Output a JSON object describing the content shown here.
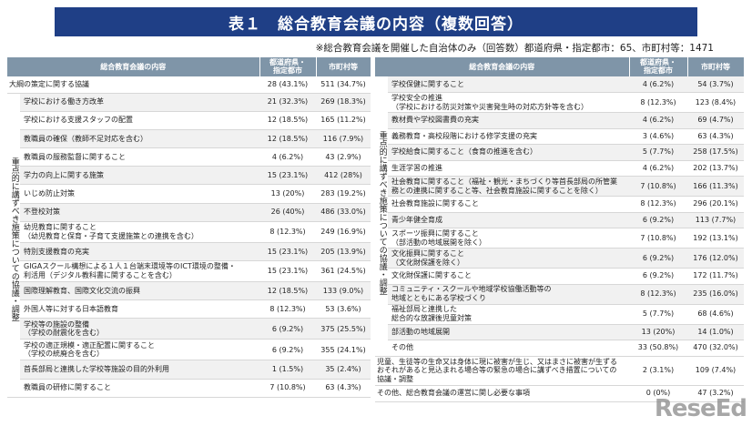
{
  "title": "表１　総合教育会議の内容（複数回答）",
  "note": "※総合教育会議を開催した自治体のみ（回答数）都道府県・指定都市：65、市町村等：1471",
  "headers": {
    "content": "総合教育会議の内容",
    "pref": "都道府県・\n指定都市",
    "muni": "市町村等"
  },
  "left": {
    "first_row": {
      "item": "大綱の策定に関する協議",
      "pref": "28 (43.1%)",
      "muni": "511 (34.7%)"
    },
    "group_label": "重点的に講ずべき施策についての協議・調整",
    "rows": [
      {
        "item": "学校における働き方改革",
        "pref": "21 (32.3%)",
        "muni": "269 (18.3%)"
      },
      {
        "item": "学校における支援スタッフの配置",
        "pref": "12 (18.5%)",
        "muni": "165 (11.2%)"
      },
      {
        "item": "教職員の確保（教師不足対応を含む）",
        "pref": "12 (18.5%)",
        "muni": "116 (7.9%)"
      },
      {
        "item": "教職員の服務監督に関すること",
        "pref": "4 (6.2%)",
        "muni": "43 (2.9%)"
      },
      {
        "item": "学力の向上に関する施策",
        "pref": "15 (23.1%)",
        "muni": "412 (28%)"
      },
      {
        "item": "いじめ防止対策",
        "pref": "13 (20%)",
        "muni": "283 (19.2%)"
      },
      {
        "item": "不登校対策",
        "pref": "26 (40%)",
        "muni": "486 (33.0%)"
      },
      {
        "item": "幼児教育に関すること\n（幼児教育と保育・子育て支援施策との連携を含む）",
        "pref": "8 (12.3%)",
        "muni": "249 (16.9%)"
      },
      {
        "item": "特別支援教育の充実",
        "pref": "15 (23.1%)",
        "muni": "205 (13.9%)"
      },
      {
        "item": "GIGAスクール構想による１人１台端末環境等のICT環境の整備・\n利活用（デジタル教科書に関することを含む）",
        "pref": "15 (23.1%)",
        "muni": "361 (24.5%)"
      },
      {
        "item": "国際理解教育、国際文化交流の振興",
        "pref": "12 (18.5%)",
        "muni": "133 (9.0%)"
      },
      {
        "item": "外国人等に対する日本語教育",
        "pref": "8 (12.3%)",
        "muni": "53 (3.6%)"
      },
      {
        "item": "学校等の施設の整備\n（学校の耐震化を含む）",
        "pref": "6 (9.2%)",
        "muni": "375 (25.5%)"
      },
      {
        "item": "学校の適正規模・適正配置に関すること\n（学校の統廃合を含む）",
        "pref": "6 (9.2%)",
        "muni": "355 (24.1%)"
      },
      {
        "item": "首長部局と連携した学校等施設の目的外利用",
        "pref": "1 (1.5%)",
        "muni": "35 (2.4%)"
      },
      {
        "item": "教職員の研修に関すること",
        "pref": "7 (10.8%)",
        "muni": "63 (4.3%)"
      }
    ]
  },
  "right": {
    "group_label": "重点的に講ずべき施策についての協議・調整",
    "rows": [
      {
        "item": "学校保健に関すること",
        "pref": "4 (6.2%)",
        "muni": "54 (3.7%)"
      },
      {
        "item": "学校安全の推進\n（学校における防災対策や災害発生時の対応方針等を含む）",
        "pref": "8 (12.3%)",
        "muni": "123 (8.4%)"
      },
      {
        "item": "教材費や学校図書費の充実",
        "pref": "4 (6.2%)",
        "muni": "69 (4.7%)"
      },
      {
        "item": "義務教育・高校段階における修学支援の充実",
        "pref": "3 (4.6%)",
        "muni": "63 (4.3%)"
      },
      {
        "item": "学校給食に関すること（食育の推進を含む）",
        "pref": "5 (7.7%)",
        "muni": "258 (17.5%)"
      },
      {
        "item": "生涯学習の推進",
        "pref": "4 (6.2%)",
        "muni": "202 (13.7%)"
      },
      {
        "item": "社会教育に関すること（福祉・観光・まちづくり等首長部局の所管業\n務との連携に関すること等、社会教育施設に関することを除く）",
        "pref": "7 (10.8%)",
        "muni": "166 (11.3%)"
      },
      {
        "item": "社会教育施設に関すること",
        "pref": "8 (12.3%)",
        "muni": "296 (20.1%)"
      },
      {
        "item": "青少年健全育成",
        "pref": "6 (9.2%)",
        "muni": "113 (7.7%)"
      },
      {
        "item": "スポーツ振興に関すること\n（部活動の地域展開を除く）",
        "pref": "7 (10.8%)",
        "muni": "192 (13.1%)"
      },
      {
        "item": "文化振興に関すること\n（文化財保護を除く）",
        "pref": "6 (9.2%)",
        "muni": "176 (12.0%)"
      },
      {
        "item": "文化財保護に関すること",
        "pref": "6 (9.2%)",
        "muni": "172 (11.7%)"
      },
      {
        "item": "コミュニティ・スクールや地域学校協働活動等の\n地域とともにある学校づくり",
        "pref": "8 (12.3%)",
        "muni": "235 (16.0%)"
      },
      {
        "item": "福祉部局と連携した\n総合的な放課後児童対策",
        "pref": "5 (7.7%)",
        "muni": "68 (4.6%)"
      },
      {
        "item": "部活動の地域展開",
        "pref": "13 (20%)",
        "muni": "14 (1.0%)"
      },
      {
        "item": "その他",
        "pref": "33 (50.8%)",
        "muni": "470 (32.0%)"
      }
    ],
    "extra_rows": [
      {
        "item": "児童、生徒等の生命又は身体に現に被害が生じ、又はまさに被害が生ずる\nおそれがあると見込まれる場合等の緊急の場合に講ずべき措置についての\n協議・調整",
        "pref": "2 (3.1%)",
        "muni": "109 (7.4%)"
      },
      {
        "item": "その他、総合教育会議の運営に関し必要な事項",
        "pref": "0 (0%)",
        "muni": "47 (3.2%)"
      }
    ]
  },
  "logo_text": "ReseEd"
}
